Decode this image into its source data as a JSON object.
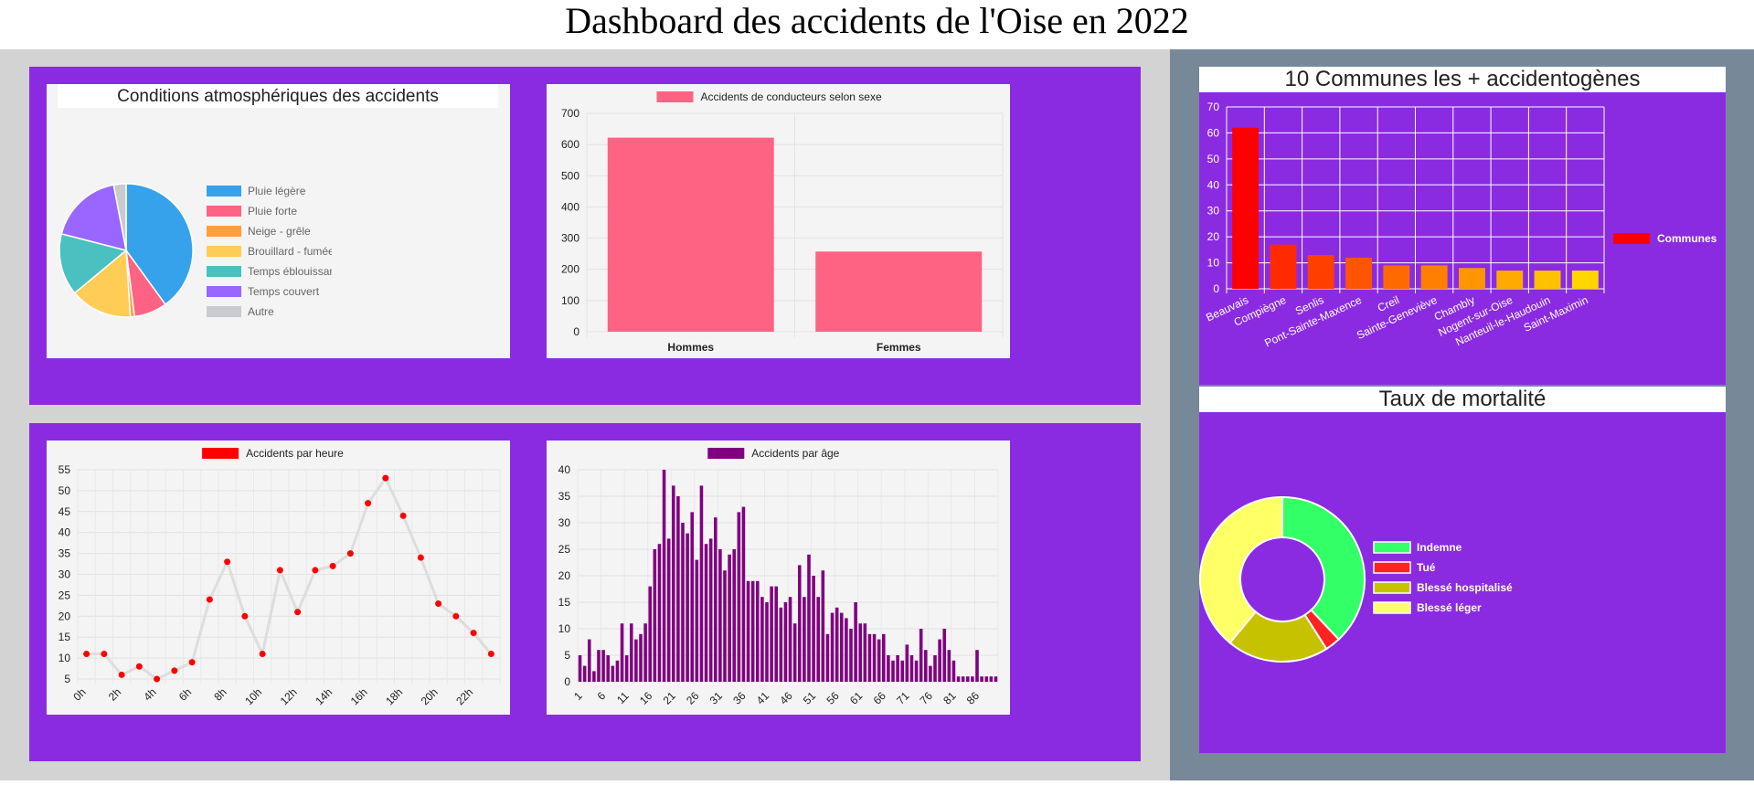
{
  "page": {
    "title": "Dashboard des accidents de l'Oise en 2022"
  },
  "colors": {
    "panel": "#8a2be2",
    "left_bg": "#d3d3d3",
    "right_bg": "#778899",
    "card": "#f4f4f4"
  },
  "weather_chart": {
    "chart_data": {
      "type": "pie",
      "title": "Conditions atmosphériques des accidents",
      "labels": [
        "Pluie légère",
        "Pluie forte",
        "Neige - grêle",
        "Brouillard - fumée",
        "Temps éblouissant",
        "Temps couvert",
        "Autre"
      ],
      "values": [
        40,
        8,
        1,
        15,
        15,
        18,
        3
      ],
      "colors": [
        "#36a2eb",
        "#ff6384",
        "#ff9f40",
        "#ffcd56",
        "#4bc0c0",
        "#9966ff",
        "#c9cbcf"
      ],
      "legend": "right"
    }
  },
  "gender_chart": {
    "chart_data": {
      "type": "bar",
      "categories": [
        "Hommes",
        "Femmes"
      ],
      "series": [
        {
          "name": "Accidents de conducteurs selon sexe",
          "values": [
            622,
            257
          ]
        }
      ],
      "ylim": [
        0,
        700
      ],
      "yticks": [
        0,
        100,
        200,
        300,
        400,
        500,
        600,
        700
      ],
      "color": "#ff6384",
      "legend": "top"
    }
  },
  "hour_chart": {
    "chart_data": {
      "type": "line",
      "x": [
        "0h",
        "1h",
        "2h",
        "3h",
        "4h",
        "5h",
        "6h",
        "7h",
        "8h",
        "9h",
        "10h",
        "11h",
        "12h",
        "13h",
        "14h",
        "15h",
        "16h",
        "17h",
        "18h",
        "19h",
        "20h",
        "21h",
        "22h",
        "23h"
      ],
      "xticks": [
        "0h",
        "2h",
        "4h",
        "6h",
        "8h",
        "10h",
        "12h",
        "14h",
        "16h",
        "18h",
        "20h",
        "22h"
      ],
      "series": [
        {
          "name": "Accidents par heure",
          "values": [
            11,
            11,
            6,
            8,
            5,
            7,
            9,
            24,
            33,
            20,
            11,
            31,
            21,
            31,
            32,
            35,
            47,
            53,
            44,
            34,
            23,
            20,
            16,
            11
          ]
        }
      ],
      "ylim": [
        5,
        55
      ],
      "yticks": [
        5,
        10,
        15,
        20,
        25,
        30,
        35,
        40,
        45,
        50,
        55
      ],
      "point_color": "#ff0000",
      "line_color": "#dddddd",
      "legend": "top"
    }
  },
  "age_chart": {
    "chart_data": {
      "type": "bar",
      "x_start": 1,
      "xticks": [
        1,
        6,
        11,
        16,
        21,
        26,
        31,
        36,
        41,
        46,
        51,
        56,
        61,
        66,
        71,
        76,
        81,
        86
      ],
      "series": [
        {
          "name": "Accidents par âge",
          "values": [
            5,
            3,
            8,
            2,
            6,
            6,
            5,
            3,
            4,
            11,
            5,
            11,
            8,
            9,
            11,
            18,
            25,
            26,
            40,
            27,
            37,
            35,
            30,
            28,
            32,
            23,
            37,
            26,
            27,
            31,
            25,
            21,
            24,
            25,
            32,
            33,
            19,
            19,
            19,
            16,
            15,
            18,
            18,
            14,
            15,
            16,
            11,
            22,
            16,
            24,
            20,
            16,
            21,
            9,
            13,
            14,
            13,
            12,
            10,
            15,
            11,
            11,
            9,
            9,
            8,
            9,
            5,
            4,
            5,
            4,
            7,
            5,
            4,
            10,
            6,
            3,
            5,
            8,
            10,
            6,
            4,
            1,
            1,
            1,
            1,
            6,
            1,
            1,
            1,
            1
          ]
        }
      ],
      "ylim": [
        0,
        40
      ],
      "yticks": [
        0,
        5,
        10,
        15,
        20,
        25,
        30,
        35,
        40
      ],
      "color": "#800080",
      "legend": "top"
    }
  },
  "communes_chart": {
    "chart_data": {
      "type": "bar",
      "title": "10 Communes les + accidentogènes",
      "categories": [
        "Beauvais",
        "Compiègne",
        "Senlis",
        "Pont-Sainte-Maxence",
        "Creil",
        "Sainte-Geneviève",
        "Chambly",
        "Nogent-sur-Oise",
        "Nanteuil-le-Haudouin",
        "Saint-Maximin"
      ],
      "series": [
        {
          "name": "Communes",
          "values": [
            62,
            17,
            13,
            12,
            9,
            9,
            8,
            7,
            7,
            7
          ]
        }
      ],
      "colors": [
        "#ff0000",
        "#ff2a00",
        "#ff3f00",
        "#ff5400",
        "#ff6a00",
        "#ff8000",
        "#ff9500",
        "#ffaa00",
        "#ffc000",
        "#ffd500"
      ],
      "ylim": [
        0,
        70
      ],
      "yticks": [
        0,
        10,
        20,
        30,
        40,
        50,
        60,
        70
      ],
      "legend": "right"
    }
  },
  "mortality_chart": {
    "chart_data": {
      "type": "pie",
      "variant": "doughnut",
      "title": "Taux de mortalité",
      "labels": [
        "Indemne",
        "Tué",
        "Blessé hospitalisé",
        "Blessé léger"
      ],
      "values": [
        38,
        3,
        20,
        39
      ],
      "colors": [
        "#33ff66",
        "#ff2222",
        "#c7c200",
        "#ffff66"
      ],
      "legend": "right"
    }
  }
}
